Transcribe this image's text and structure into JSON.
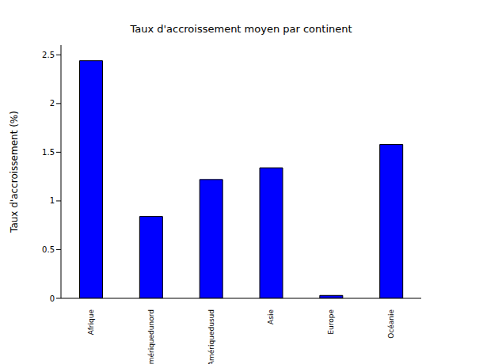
{
  "chart_data": {
    "type": "bar",
    "title": "Taux d'accroissement moyen par continent",
    "y_label": "Taux d'accroissement (%)",
    "categories": [
      "Afrique",
      "Amériquedunord",
      "Amériquedusud",
      "Asie",
      "Europe",
      "Océanie"
    ],
    "values": [
      2.44,
      0.84,
      1.22,
      1.34,
      0.03,
      1.58
    ],
    "color": "#0000ff",
    "ylim": [
      0,
      2.6
    ],
    "yticks": [
      0,
      0.5,
      1,
      1.5,
      2,
      2.5
    ],
    "grid": false
  }
}
